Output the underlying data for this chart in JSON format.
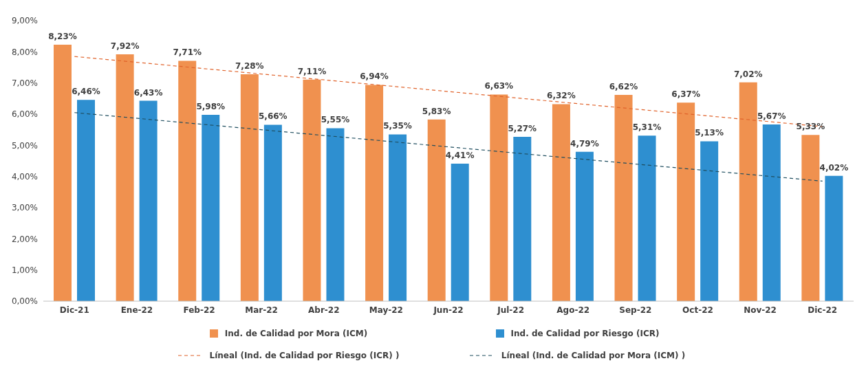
{
  "chart_data": {
    "type": "bar",
    "categories": [
      "Dic-21",
      "Ene-22",
      "Feb-22",
      "Mar-22",
      "Abr-22",
      "May-22",
      "Jun-22",
      "Jul-22",
      "Ago-22",
      "Sep-22",
      "Oct-22",
      "Nov-22",
      "Dic-22"
    ],
    "series": [
      {
        "name": "Ind. de Calidad por Mora (ICM)",
        "color": "#f0914f",
        "values": [
          8.23,
          7.92,
          7.71,
          7.28,
          7.11,
          6.94,
          5.83,
          6.63,
          6.32,
          6.62,
          6.37,
          7.02,
          5.33
        ],
        "value_labels": [
          "8,23%",
          "7,92%",
          "7,71%",
          "7,28%",
          "7,11%",
          "6,94%",
          "5,83%",
          "6,63%",
          "6,32%",
          "6,62%",
          "6,37%",
          "7,02%",
          "5,33%"
        ]
      },
      {
        "name": "Ind. de Calidad por Riesgo (ICR)",
        "color": "#2e8fd0",
        "values": [
          6.46,
          6.43,
          5.98,
          5.66,
          5.55,
          5.35,
          4.41,
          5.27,
          4.79,
          5.31,
          5.13,
          5.67,
          4.02
        ],
        "value_labels": [
          "6,46%",
          "6,43%",
          "5,98%",
          "5,66%",
          "5,55%",
          "5,35%",
          "4,41%",
          "5,27%",
          "4,79%",
          "5,31%",
          "5,13%",
          "5,67%",
          "4,02%"
        ]
      },
      {
        "name": "Líneal (Ind. de Calidad por Riesgo (ICR) )",
        "type": "line",
        "color": "#e0622a",
        "line_style": "dashed",
        "values": [
          7.85,
          null,
          null,
          null,
          null,
          null,
          null,
          null,
          null,
          null,
          null,
          null,
          5.6
        ]
      },
      {
        "name": "Líneal (Ind. de Calidad por Mora (ICM) )",
        "type": "line",
        "color": "#1f4e5f",
        "line_style": "dashed",
        "values": [
          6.05,
          null,
          null,
          null,
          null,
          null,
          null,
          null,
          null,
          null,
          null,
          null,
          3.85
        ]
      }
    ],
    "ylim": [
      0,
      9
    ],
    "yticks": [
      {
        "value": 0,
        "label": "0,00%"
      },
      {
        "value": 1,
        "label": "1,00%"
      },
      {
        "value": 2,
        "label": "2,00%"
      },
      {
        "value": 3,
        "label": "3,00%"
      },
      {
        "value": 4,
        "label": "4,00%"
      },
      {
        "value": 5,
        "label": "5,00%"
      },
      {
        "value": 6,
        "label": "6,00%"
      },
      {
        "value": 7,
        "label": "7,00%"
      },
      {
        "value": 8,
        "label": "8,00%"
      },
      {
        "value": 9,
        "label": "9,00%"
      }
    ],
    "legend": "bottom",
    "marker": "none"
  }
}
